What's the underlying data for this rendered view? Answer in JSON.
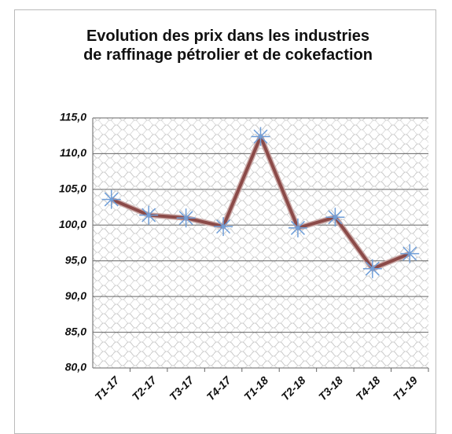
{
  "chart_data": {
    "type": "line",
    "title": "Evolution  des prix dans les industries de raffinage pétrolier et de cokefaction",
    "categories": [
      "T1-17",
      "T2-17",
      "T3-17",
      "T4-17",
      "T1-18",
      "T2-18",
      "T3-18",
      "T4-18",
      "T1-19"
    ],
    "series": [
      {
        "color": "#8b4a48",
        "marker_color": "#6f9ed8",
        "values": [
          103.6,
          101.4,
          101.0,
          99.8,
          112.4,
          99.6,
          101.1,
          93.9,
          96.0
        ]
      }
    ],
    "ylim": [
      80,
      115
    ],
    "yticks": [
      {
        "value": 80,
        "label": "80,0"
      },
      {
        "value": 85,
        "label": "85,0"
      },
      {
        "value": 90,
        "label": "90,0"
      },
      {
        "value": 95,
        "label": "95,0"
      },
      {
        "value": 100,
        "label": "100,0"
      },
      {
        "value": 105,
        "label": "105,0"
      },
      {
        "value": 110,
        "label": "110,0"
      },
      {
        "value": 115,
        "label": "115,0"
      }
    ],
    "grid": true
  }
}
